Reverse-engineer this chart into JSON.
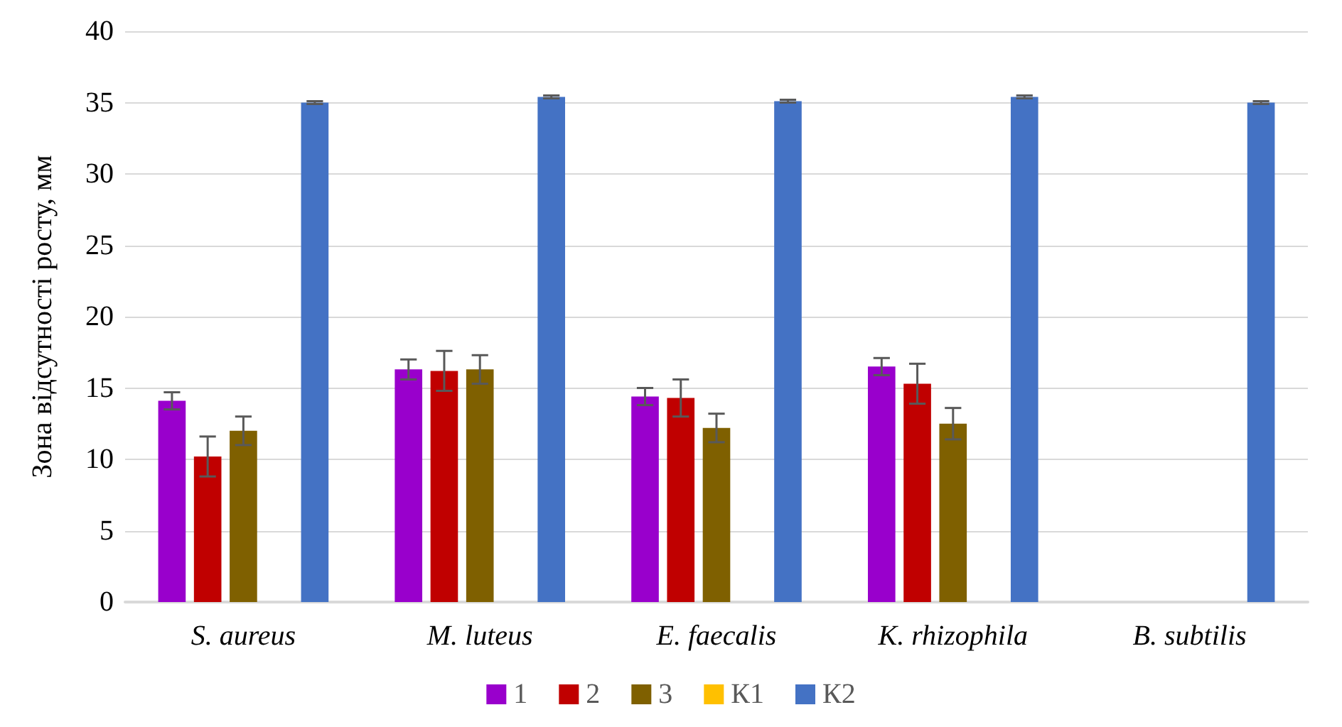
{
  "chart_data": {
    "type": "bar",
    "ylabel": "Зона відсутності росту, мм",
    "categories": [
      "S. aureus",
      "M. luteus",
      "E. faecalis",
      "K. rhizophila",
      "B. subtilis"
    ],
    "series": [
      {
        "name": "1",
        "color": "#9900cc",
        "values": [
          14.1,
          16.3,
          14.4,
          16.5,
          null
        ],
        "errors": [
          0.6,
          0.7,
          0.6,
          0.6,
          null
        ]
      },
      {
        "name": "2",
        "color": "#c00000",
        "values": [
          10.2,
          16.2,
          14.3,
          15.3,
          null
        ],
        "errors": [
          1.4,
          1.4,
          1.3,
          1.4,
          null
        ]
      },
      {
        "name": "3",
        "color": "#7f6000",
        "values": [
          12.0,
          16.3,
          12.2,
          12.5,
          null
        ],
        "errors": [
          1.0,
          1.0,
          1.0,
          1.1,
          null
        ]
      },
      {
        "name": "К1",
        "color": "#ffc000",
        "values": [
          null,
          null,
          null,
          null,
          null
        ]
      },
      {
        "name": "К2",
        "color": "#4472c4",
        "values": [
          35.0,
          35.4,
          35.1,
          35.4,
          35.0
        ],
        "errors": [
          0.1,
          0.1,
          0.1,
          0.1,
          0.1
        ]
      }
    ],
    "ylim": [
      0,
      40
    ],
    "yticks": [
      0,
      5,
      10,
      15,
      20,
      25,
      30,
      35,
      40
    ],
    "grid": "y",
    "legend": "bottom"
  }
}
